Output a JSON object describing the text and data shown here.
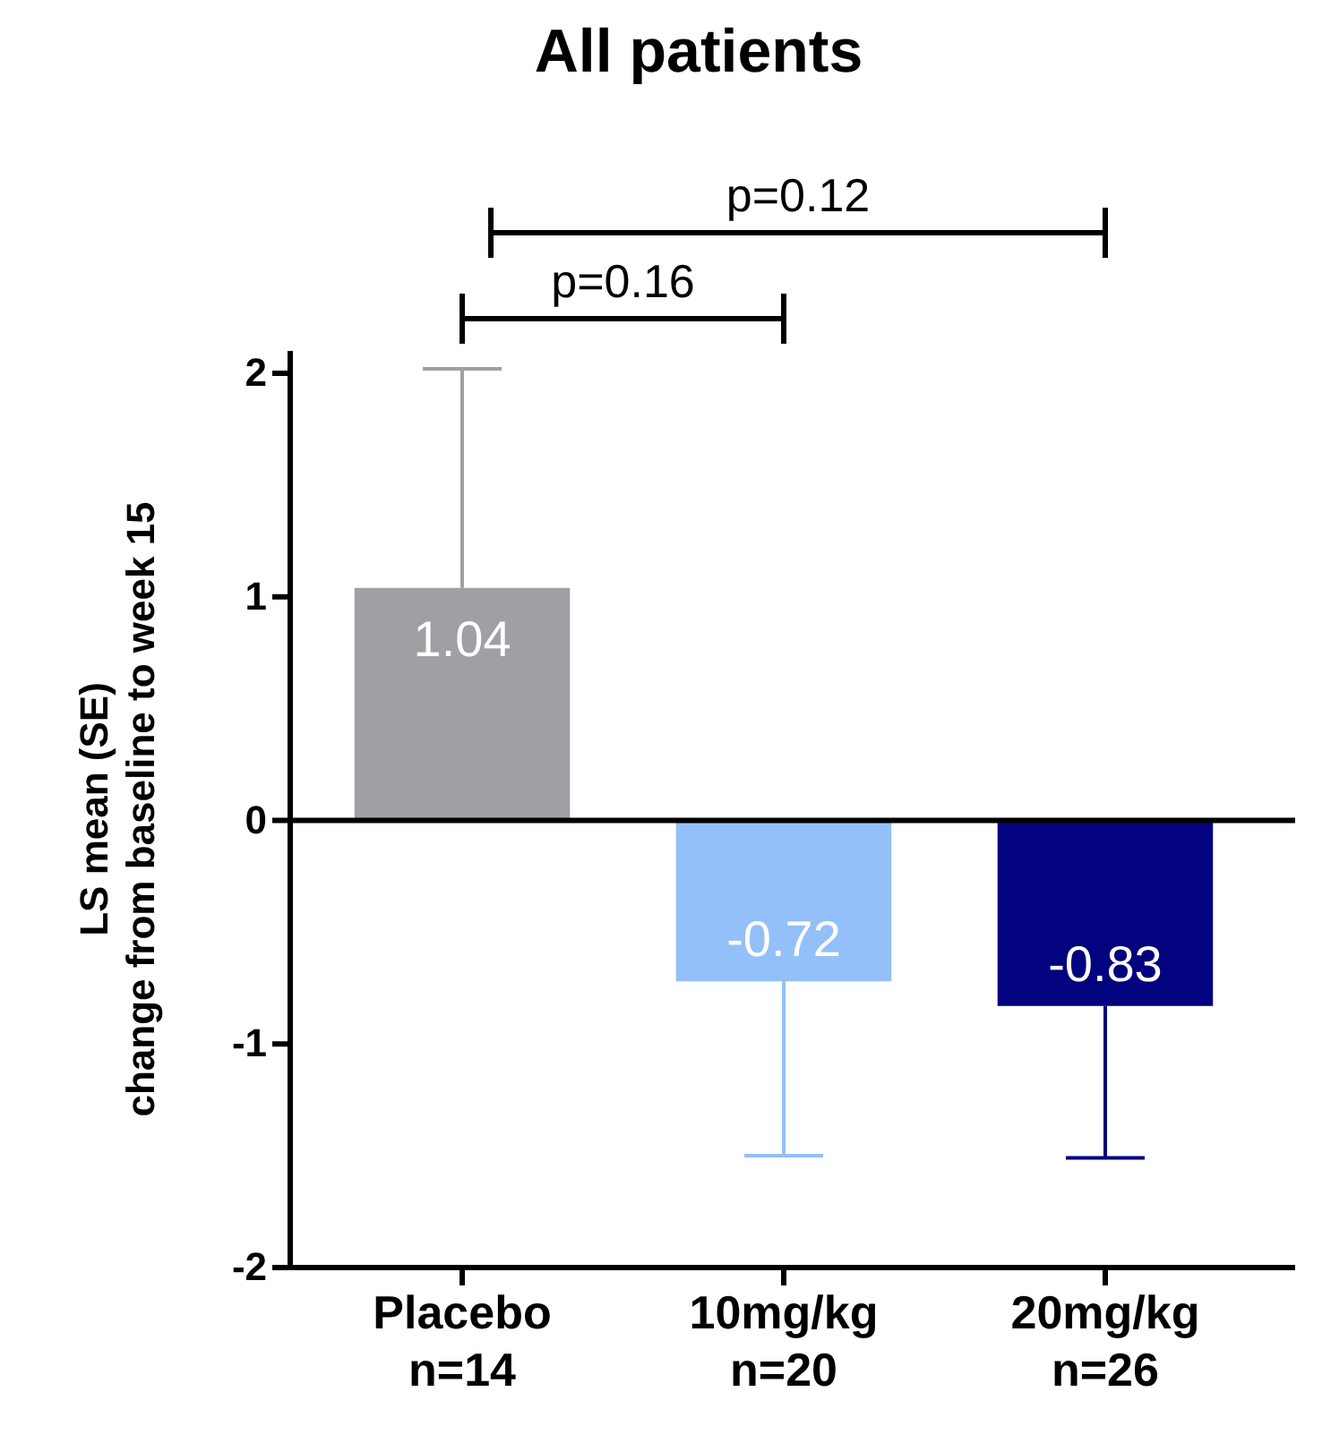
{
  "chart_data": {
    "type": "bar",
    "title": "All patients",
    "ylabel": "LS mean (SE)\nchange from baseline to week 15",
    "categories": [
      "Placebo\nn=14",
      "10mg/kg\nn=20",
      "20mg/kg\nn=26"
    ],
    "values": [
      1.04,
      -0.72,
      -0.83
    ],
    "colors": [
      "#a09fa4",
      "#93c0f8",
      "#03037f"
    ],
    "errors": [
      [
        1.04,
        2.02
      ],
      [
        -1.5,
        -0.72
      ],
      [
        -1.51,
        -0.83
      ]
    ],
    "ref_lines": [
      {
        "axis": "y",
        "value": 0,
        "color": "#000000"
      }
    ],
    "data_labels": true,
    "ylim": [
      -2,
      2.1
    ],
    "yticks": [
      -2,
      -1,
      0,
      1,
      2
    ],
    "grid": false,
    "annotations": [
      "p=0.12",
      "p=0.16"
    ]
  }
}
